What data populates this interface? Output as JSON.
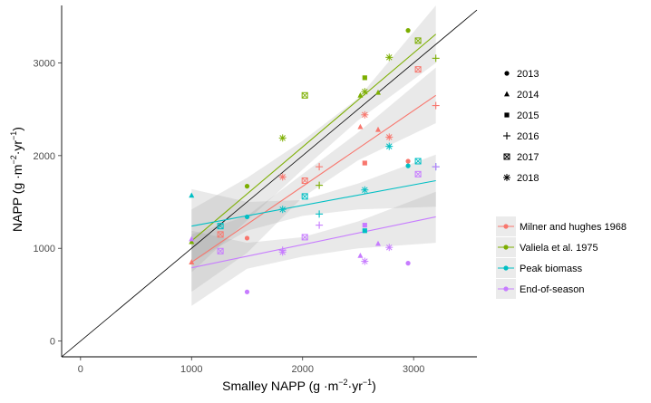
{
  "chart_data": {
    "type": "scatter",
    "xlabel": "Smalley NAPP (g ·m",
    "xlabel_unit_tail": "·yr",
    "xlabel_end": ")",
    "ylabel": "NAPP (g ·m",
    "ylabel_unit_tail": "·yr",
    "ylabel_end": ")",
    "exponent_m": "−2",
    "exponent_yr": "−1",
    "xlim": [
      -170,
      3570
    ],
    "ylim": [
      -170,
      3620
    ],
    "xticks": [
      0,
      1000,
      2000,
      3000
    ],
    "yticks": [
      0,
      1000,
      2000,
      3000
    ],
    "grid": false,
    "reference_line": {
      "type": "1:1",
      "color": "#000000"
    },
    "shape_legend": {
      "position": "right-top",
      "items": [
        {
          "label": "2013",
          "shape": "circle"
        },
        {
          "label": "2014",
          "shape": "triangle"
        },
        {
          "label": "2015",
          "shape": "square"
        },
        {
          "label": "2016",
          "shape": "plus"
        },
        {
          "label": "2017",
          "shape": "boxed-x"
        },
        {
          "label": "2018",
          "shape": "star"
        }
      ]
    },
    "color_legend": {
      "position": "right-bottom",
      "items": [
        {
          "label": "Milner and hughes 1968",
          "color": "#F8766D"
        },
        {
          "label": "Valiela et al. 1975",
          "color": "#7CAE00"
        },
        {
          "label": "Peak biomass",
          "color": "#00BFC4"
        },
        {
          "label": "End-of-season",
          "color": "#C77CFF"
        }
      ]
    },
    "series": [
      {
        "color": "#F8766D",
        "fit": {
          "x": [
            1000,
            3200
          ],
          "y": [
            850,
            2650
          ]
        },
        "band": {
          "x": [
            1000,
            1500,
            2000,
            2500,
            3200
          ],
          "upper": [
            1150,
            1350,
            1800,
            2250,
            2950
          ],
          "lower": [
            530,
            950,
            1550,
            1950,
            2350
          ]
        },
        "points": [
          {
            "shape": "circle",
            "x": 1500,
            "y": 1110
          },
          {
            "shape": "circle",
            "x": 2950,
            "y": 1940
          },
          {
            "shape": "triangle",
            "x": 1000,
            "y": 850
          },
          {
            "shape": "triangle",
            "x": 2520,
            "y": 2310
          },
          {
            "shape": "triangle",
            "x": 2680,
            "y": 2280
          },
          {
            "shape": "square",
            "x": 2560,
            "y": 1920
          },
          {
            "shape": "plus",
            "x": 2150,
            "y": 1880
          },
          {
            "shape": "plus",
            "x": 3200,
            "y": 2540
          },
          {
            "shape": "boxed-x",
            "x": 1260,
            "y": 1150
          },
          {
            "shape": "boxed-x",
            "x": 2020,
            "y": 1730
          },
          {
            "shape": "boxed-x",
            "x": 3040,
            "y": 2930
          },
          {
            "shape": "star",
            "x": 1820,
            "y": 1770
          },
          {
            "shape": "star",
            "x": 2560,
            "y": 2440
          },
          {
            "shape": "star",
            "x": 2780,
            "y": 2200
          }
        ]
      },
      {
        "color": "#7CAE00",
        "fit": {
          "x": [
            1000,
            3200
          ],
          "y": [
            1080,
            3310
          ]
        },
        "band": {
          "x": [
            1000,
            1500,
            2000,
            2500,
            3200
          ],
          "upper": [
            1420,
            1760,
            2160,
            2620,
            3620
          ],
          "lower": [
            740,
            1300,
            1850,
            2380,
            3000
          ]
        },
        "points": [
          {
            "shape": "circle",
            "x": 1500,
            "y": 1670
          },
          {
            "shape": "circle",
            "x": 2950,
            "y": 3350
          },
          {
            "shape": "triangle",
            "x": 1000,
            "y": 1070
          },
          {
            "shape": "triangle",
            "x": 2520,
            "y": 2650
          },
          {
            "shape": "triangle",
            "x": 2680,
            "y": 2680
          },
          {
            "shape": "square",
            "x": 2560,
            "y": 2840
          },
          {
            "shape": "plus",
            "x": 2150,
            "y": 1680
          },
          {
            "shape": "plus",
            "x": 3200,
            "y": 3050
          },
          {
            "shape": "boxed-x",
            "x": 2020,
            "y": 2650
          },
          {
            "shape": "boxed-x",
            "x": 3040,
            "y": 3240
          },
          {
            "shape": "star",
            "x": 1820,
            "y": 2190
          },
          {
            "shape": "star",
            "x": 2560,
            "y": 2690
          },
          {
            "shape": "star",
            "x": 2780,
            "y": 3060
          }
        ]
      },
      {
        "color": "#00BFC4",
        "fit": {
          "x": [
            1000,
            3200
          ],
          "y": [
            1240,
            1730
          ]
        },
        "band": {
          "x": [
            1000,
            1500,
            2000,
            2500,
            3200
          ],
          "upper": [
            1640,
            1500,
            1520,
            1700,
            2010
          ],
          "lower": [
            850,
            1190,
            1350,
            1420,
            1450
          ]
        },
        "points": [
          {
            "shape": "circle",
            "x": 1500,
            "y": 1340
          },
          {
            "shape": "circle",
            "x": 2950,
            "y": 1890
          },
          {
            "shape": "triangle",
            "x": 1000,
            "y": 1570
          },
          {
            "shape": "square",
            "x": 2560,
            "y": 1190
          },
          {
            "shape": "plus",
            "x": 2150,
            "y": 1370
          },
          {
            "shape": "plus",
            "x": 3200,
            "y": 1880
          },
          {
            "shape": "boxed-x",
            "x": 1260,
            "y": 1240
          },
          {
            "shape": "boxed-x",
            "x": 2020,
            "y": 1560
          },
          {
            "shape": "boxed-x",
            "x": 3040,
            "y": 1940
          },
          {
            "shape": "star",
            "x": 1820,
            "y": 1420
          },
          {
            "shape": "star",
            "x": 2560,
            "y": 1630
          },
          {
            "shape": "star",
            "x": 2780,
            "y": 2100
          }
        ]
      },
      {
        "color": "#C77CFF",
        "fit": {
          "x": [
            1000,
            3200
          ],
          "y": [
            790,
            1340
          ]
        },
        "band": {
          "x": [
            1000,
            1500,
            2000,
            2500,
            3200
          ],
          "upper": [
            1190,
            1060,
            1120,
            1290,
            1610
          ],
          "lower": [
            380,
            780,
            910,
            1000,
            1060
          ]
        },
        "points": [
          {
            "shape": "circle",
            "x": 1500,
            "y": 530
          },
          {
            "shape": "circle",
            "x": 2950,
            "y": 840
          },
          {
            "shape": "triangle",
            "x": 1000,
            "y": 1100
          },
          {
            "shape": "triangle",
            "x": 2520,
            "y": 920
          },
          {
            "shape": "triangle",
            "x": 2680,
            "y": 1050
          },
          {
            "shape": "square",
            "x": 2560,
            "y": 1250
          },
          {
            "shape": "plus",
            "x": 1820,
            "y": 980
          },
          {
            "shape": "plus",
            "x": 2150,
            "y": 1250
          },
          {
            "shape": "plus",
            "x": 3200,
            "y": 1880
          },
          {
            "shape": "boxed-x",
            "x": 1260,
            "y": 970
          },
          {
            "shape": "boxed-x",
            "x": 2020,
            "y": 1120
          },
          {
            "shape": "boxed-x",
            "x": 3040,
            "y": 1800
          },
          {
            "shape": "star",
            "x": 1820,
            "y": 960
          },
          {
            "shape": "star",
            "x": 2560,
            "y": 860
          },
          {
            "shape": "star",
            "x": 2780,
            "y": 1010
          }
        ]
      }
    ]
  }
}
